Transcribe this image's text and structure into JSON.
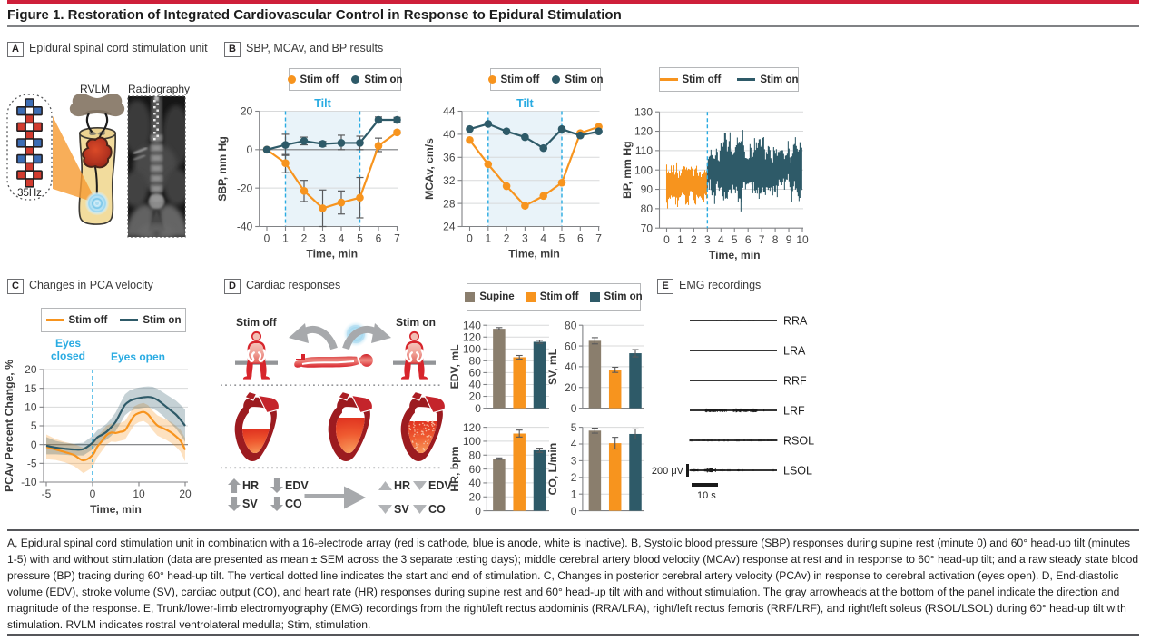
{
  "page": {
    "title": "Figure 1. Restoration of Integrated Cardiovascular Control in Response to Epidural Stimulation",
    "caption": "A, Epidural spinal cord stimulation unit in combination with a 16-electrode array (red is cathode, blue is anode, white is inactive). B, Systolic blood pressure (SBP) responses during supine rest (minute 0) and 60° head-up tilt (minutes 1-5) with and without stimulation (data are presented as mean ± SEM across the 3 separate testing days); middle cerebral artery blood velocity (MCAv) response at rest and in response to 60° head-up tilt; and a raw steady state blood pressure (BP) tracing during 60° head-up tilt. The vertical dotted line indicates the start and end of stimulation. C, Changes in posterior cerebral artery velocity (PCAv) in response to cerebral activation (eyes open). D, End-diastolic volume (EDV), stroke volume (SV), cardiac output (CO), and heart rate (HR) responses during supine rest and 60° head-up tilt with and without stimulation. The gray arrowheads at the bottom of the panel indicate the direction and magnitude of the response. E, Trunk/lower-limb electromyography (EMG) recordings from the right/left rectus abdominis (RRA/LRA), right/left rectus femoris (RRF/LRF), and right/left soleus (RSOL/LSOL) during 60° head-up tilt with stimulation. RVLM indicates rostral ventrolateral medulla; Stim, stimulation."
  },
  "colors": {
    "accent_red": "#ce1f3a",
    "orange": "#f7941e",
    "teal": "#2e5a68",
    "taupe": "#8a7e6d",
    "cyan": "#29abe2",
    "tilt_shade": "#e9f3f9",
    "grid": "#d8d9da",
    "zero_line": "#77787b",
    "axis_line": "#808285",
    "err": "#58595b",
    "electrode_red": "#d23b2f",
    "electrode_blue": "#3c6cb4",
    "band_orange": "#f2ddba",
    "band_teal": "#bfcdd3"
  },
  "panel_a": {
    "label": "A",
    "title": "Epidural spinal cord stimulation unit",
    "freq_label": "35Hz",
    "rvlm_label": "RVLM",
    "radiography_label": "Radiography",
    "electrode_rows": [
      [
        null,
        "anode",
        null
      ],
      [
        "anode",
        "inactive",
        "anode"
      ],
      [
        null,
        "cathode",
        null
      ],
      [
        "cathode",
        "inactive",
        "cathode"
      ],
      [
        null,
        "cathode",
        null
      ],
      [
        "anode",
        "inactive",
        "anode"
      ],
      [
        null,
        "cathode",
        null
      ],
      [
        "anode",
        "inactive",
        "anode"
      ],
      [
        null,
        "cathode",
        null
      ],
      [
        "cathode",
        "inactive",
        "cathode"
      ],
      [
        null,
        "cathode",
        null
      ]
    ]
  },
  "panel_b": {
    "label": "B",
    "title": "SBP, MCAv, and BP results",
    "legend_off": "Stim off",
    "legend_on": "Stim on"
  },
  "panel_c": {
    "label": "C",
    "title": "Changes in PCA velocity",
    "legend_off": "Stim off",
    "legend_on": "Stim on",
    "note_closed": "Eyes closed",
    "note_open": "Eyes open"
  },
  "panel_d": {
    "label": "D",
    "title": "Cardiac responses",
    "stim_off_label": "Stim off",
    "stim_on_label": "Stim on",
    "legend": [
      "Supine",
      "Stim off",
      "Stim on"
    ],
    "arrows_off": [
      {
        "dir": "up",
        "label": "HR"
      },
      {
        "dir": "down",
        "label": "EDV"
      },
      {
        "dir": "down",
        "label": "SV"
      },
      {
        "dir": "down",
        "label": "CO"
      }
    ],
    "arrows_on": [
      {
        "dir": "up",
        "label": "HR"
      },
      {
        "dir": "down",
        "label": "EDV"
      },
      {
        "dir": "down",
        "label": "SV"
      },
      {
        "dir": "down",
        "label": "CO"
      }
    ]
  },
  "panel_e": {
    "label": "E",
    "title": "EMG recordings",
    "amp_label": "200 μV",
    "time_label": "10 s"
  },
  "chart_data": [
    {
      "id": "sbp",
      "type": "line",
      "ylabel": "SBP, mm Hg",
      "xlabel": "Time, min",
      "ylim": [
        -40,
        20
      ],
      "ytick_step": 20,
      "zero_line": 0,
      "x": [
        0,
        1,
        2,
        3,
        4,
        5,
        6,
        7
      ],
      "tilt": {
        "from": 1,
        "to": 5,
        "label": "Tilt"
      },
      "series": [
        {
          "name": "Stim off",
          "color": "orange",
          "values": [
            0,
            -7,
            -21.5,
            -30.5,
            -27.5,
            -25,
            2,
            9
          ],
          "err_lo": [
            0,
            5,
            5.5,
            9.5,
            6,
            10.5,
            3,
            0.8
          ],
          "err_hi": [
            0,
            4.5,
            5.5,
            9.5,
            6,
            10.5,
            4,
            0.8
          ]
        },
        {
          "name": "Stim on",
          "color": "teal",
          "values": [
            0,
            2.5,
            4.5,
            3,
            3.5,
            3.5,
            15.5,
            15.5
          ],
          "err_lo": [
            0,
            5.5,
            2,
            1.3,
            3.5,
            3.5,
            1.5,
            1.3
          ],
          "err_hi": [
            0,
            5.5,
            2,
            1.3,
            4,
            3.5,
            1.5,
            1.3
          ]
        }
      ]
    },
    {
      "id": "mcav",
      "type": "line",
      "ylabel": "MCAv, cm/s",
      "xlabel": "Time, min",
      "ylim": [
        24,
        44
      ],
      "ytick_step": 4,
      "x": [
        0,
        1,
        2,
        3,
        4,
        5,
        6,
        7
      ],
      "tilt": {
        "from": 1,
        "to": 5,
        "label": "Tilt"
      },
      "series": [
        {
          "name": "Stim off",
          "color": "orange",
          "values": [
            39,
            34.8,
            31,
            27.6,
            29.3,
            31.6,
            40.2,
            41.3
          ]
        },
        {
          "name": "Stim on",
          "color": "teal",
          "values": [
            40.9,
            41.8,
            40.5,
            39.5,
            37.6,
            40.9,
            39.8,
            40.5
          ]
        }
      ]
    },
    {
      "id": "bp",
      "type": "trace",
      "ylabel": "BP, mm Hg",
      "xlabel": "Time, min",
      "ylim": [
        70,
        130
      ],
      "ytick_step": 10,
      "xlim": [
        0,
        10
      ],
      "xtick_step": 1,
      "event_x": 3,
      "segments": [
        {
          "name": "Stim off",
          "color": "orange",
          "t0": 0,
          "t1": 3,
          "center": 92.7,
          "drift": 3,
          "half": 9.5,
          "spike": 5,
          "bumps": []
        },
        {
          "name": "Stim on",
          "color": "teal",
          "t0": 3,
          "t1": 10,
          "center": 100,
          "drift": 4.5,
          "half": 11,
          "spike": 7,
          "bumps": [
            [
              4.35,
              0.35,
              7
            ],
            [
              5.35,
              0.3,
              7
            ],
            [
              7.0,
              0.55,
              4
            ],
            [
              9.65,
              0.3,
              5
            ]
          ]
        }
      ]
    },
    {
      "id": "pcav",
      "type": "band",
      "ylabel": "PCAv Percent Change, %",
      "xlabel": "Time, min",
      "ylim": [
        -10,
        20
      ],
      "ytick_step": 5,
      "zero_line": 0,
      "xticks": [
        -5,
        0,
        10,
        20
      ],
      "event_x": 0,
      "t": [
        -5,
        -4,
        -3,
        -2,
        -1,
        0,
        1,
        2,
        3,
        4,
        5,
        6,
        7,
        8,
        9,
        10,
        11,
        12,
        13,
        14,
        15,
        16,
        17,
        18,
        19,
        20
      ],
      "series": [
        {
          "name": "Stim off",
          "color": "orange",
          "values": [
            -0.6,
            -1.3,
            -2.0,
            -2.8,
            -4.2,
            -2.8,
            -0.6,
            0.9,
            2.5,
            3.2,
            3.1,
            3.4,
            3.8,
            5.8,
            7.7,
            8.4,
            8.7,
            8.0,
            6.4,
            5.1,
            4.5,
            3.9,
            3.2,
            2.2,
            1.0,
            -1.4
          ],
          "band": [
            3.3,
            2.8,
            2.7,
            2.9,
            3.4,
            3.3,
            2.8,
            2.6,
            2.5,
            2.4,
            2.4,
            2.4,
            2.5,
            2.5,
            2.5,
            2.4,
            2.4,
            2.5,
            2.6,
            2.7,
            2.7,
            2.7,
            2.8,
            2.8,
            2.9,
            3.1
          ]
        },
        {
          "name": "Stim on",
          "color": "teal",
          "values": [
            -0.3,
            -0.8,
            -1.1,
            -1.3,
            -1.2,
            0.5,
            1.9,
            2.6,
            3.4,
            4.6,
            6.1,
            8.4,
            10.6,
            11.6,
            12.1,
            12.4,
            12.6,
            12.7,
            12.5,
            11.9,
            11.0,
            10.0,
            9.0,
            8.0,
            6.6,
            5.0
          ],
          "band": [
            2.3,
            1.8,
            1.6,
            1.6,
            1.7,
            1.8,
            1.9,
            2.0,
            2.1,
            2.3,
            2.5,
            2.7,
            2.8,
            2.8,
            2.8,
            2.8,
            2.8,
            2.8,
            2.9,
            3.0,
            3.1,
            3.3,
            3.5,
            3.7,
            4.0,
            4.3
          ]
        }
      ]
    },
    {
      "id": "edv",
      "type": "bar",
      "ylabel": "EDV, mL",
      "ylim": [
        0,
        140
      ],
      "ytick_step": 20,
      "categories": [
        "Supine",
        "Stim off",
        "Stim on"
      ],
      "colors": [
        "taupe",
        "orange",
        "teal"
      ],
      "values": [
        134,
        86,
        112
      ],
      "errors": [
        2,
        3,
        2.5
      ]
    },
    {
      "id": "sv",
      "type": "bar",
      "ylabel": "SV, mL",
      "ylim": [
        0,
        80
      ],
      "ytick_step": 20,
      "categories": [
        "Supine",
        "Stim off",
        "Stim on"
      ],
      "colors": [
        "taupe",
        "orange",
        "teal"
      ],
      "values": [
        65,
        37,
        53
      ],
      "errors": [
        3,
        2.5,
        3.5
      ]
    },
    {
      "id": "hr",
      "type": "bar",
      "ylabel": "HR, bpm",
      "ylim": [
        0,
        120
      ],
      "ytick_step": 20,
      "categories": [
        "Supine",
        "Stim off",
        "Stim on"
      ],
      "colors": [
        "taupe",
        "orange",
        "teal"
      ],
      "values": [
        75,
        111,
        87
      ],
      "errors": [
        1,
        5,
        3
      ]
    },
    {
      "id": "co",
      "type": "bar",
      "ylabel": "CO, L/min",
      "ylim": [
        0,
        5
      ],
      "ytick_step": 1,
      "categories": [
        "Supine",
        "Stim off",
        "Stim on"
      ],
      "colors": [
        "taupe",
        "orange",
        "teal"
      ],
      "values": [
        4.8,
        4.05,
        4.6
      ],
      "errors": [
        0.15,
        0.35,
        0.3
      ]
    },
    {
      "id": "emg",
      "type": "emg",
      "traces": [
        {
          "label": "RRA",
          "bursts": [
            [
              0.3,
              0.75,
              0.7
            ]
          ],
          "stipple": 0
        },
        {
          "label": "LRA",
          "bursts": [],
          "stipple": 0
        },
        {
          "label": "RRF",
          "bursts": [
            [
              0.55,
              0.6,
              0.5
            ]
          ],
          "stipple": 0
        },
        {
          "label": "LRF",
          "bursts": [
            [
              0.18,
              0.42,
              2.2
            ],
            [
              0.5,
              0.78,
              2.2
            ],
            [
              0.84,
              0.86,
              1.2
            ]
          ],
          "stipple": 0
        },
        {
          "label": "RSOL",
          "bursts": [],
          "stipple": 0.9
        },
        {
          "label": "LSOL",
          "bursts": [
            [
              0.02,
              0.1,
              1.4
            ],
            [
              0.17,
              0.3,
              2.4
            ],
            [
              0.55,
              0.58,
              1.2
            ],
            [
              0.72,
              0.75,
              1.0
            ]
          ],
          "stipple": 0.25
        }
      ]
    }
  ]
}
